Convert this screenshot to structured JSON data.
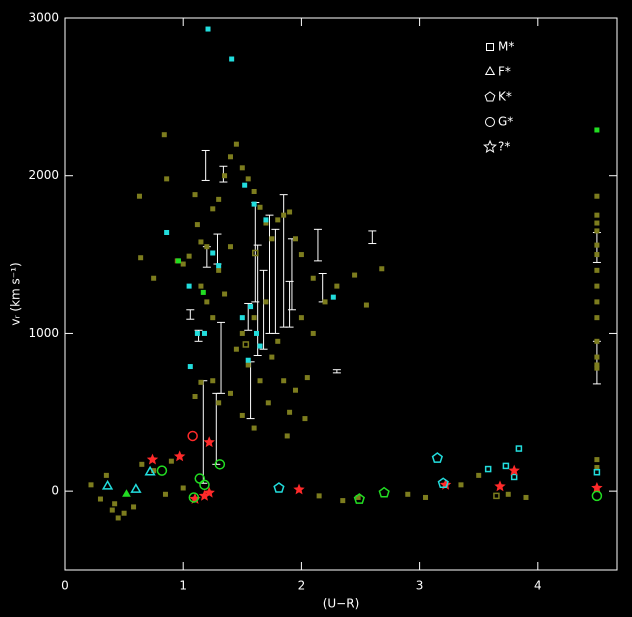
{
  "chart_data": {
    "type": "scatter",
    "xlabel": "(U−R)",
    "ylabel": "vᵣ (km s⁻¹)",
    "xlim": [
      0,
      4.67
    ],
    "ylim": [
      -500,
      3000
    ],
    "xticks": [
      0,
      1,
      2,
      3,
      4
    ],
    "yticks": [
      0,
      1000,
      2000,
      3000
    ],
    "legend_position": "upper right",
    "legend": [
      {
        "label": "M*",
        "marker": "square"
      },
      {
        "label": "F*",
        "marker": "triangle"
      },
      {
        "label": "K*",
        "marker": "pentagon"
      },
      {
        "label": "G*",
        "marker": "circle"
      },
      {
        "label": "?*",
        "marker": "star"
      }
    ],
    "series": [
      {
        "marker": "square",
        "color": "#7d7d1e",
        "filled": true,
        "x": [
          0.63,
          0.84,
          0.86,
          0.64,
          0.75,
          0.95,
          1.0,
          1.05,
          1.1,
          1.12,
          1.15,
          1.2,
          1.25,
          1.3,
          1.35,
          1.4,
          1.45,
          1.5,
          1.55,
          1.6,
          1.65,
          1.7,
          1.75,
          1.8,
          1.85,
          1.9,
          1.95,
          2.0,
          2.1,
          2.2,
          2.3,
          2.45,
          2.55,
          2.68,
          1.15,
          1.2,
          1.25,
          1.3,
          1.35,
          1.4,
          1.45,
          1.5,
          1.55,
          1.6,
          1.65,
          1.7,
          1.75,
          1.8,
          1.85,
          1.9,
          1.95,
          2.0,
          2.05,
          2.1,
          1.25,
          1.3,
          1.4,
          1.5,
          1.6,
          1.72,
          1.88,
          2.03,
          1.1,
          1.15,
          0.22,
          0.3,
          0.35,
          0.4,
          0.45,
          0.5,
          0.42,
          0.58,
          0.65,
          0.75,
          0.85,
          0.9,
          1.0,
          2.15,
          2.35,
          2.48,
          2.9,
          3.05,
          3.35,
          3.5,
          3.75,
          3.9,
          4.5,
          4.5,
          4.5,
          4.5,
          4.5,
          4.5,
          4.5,
          4.5,
          4.5,
          4.5,
          4.5,
          4.5,
          4.5,
          4.5,
          4.5,
          4.5
        ],
        "y": [
          1870,
          2260,
          1980,
          1480,
          1350,
          1460,
          1440,
          1490,
          1880,
          1690,
          1580,
          1550,
          1790,
          1850,
          2000,
          2120,
          2200,
          2050,
          1980,
          1900,
          1800,
          1700,
          1600,
          1720,
          1750,
          1770,
          1600,
          1500,
          1350,
          1200,
          1300,
          1370,
          1180,
          1410,
          1300,
          1200,
          1100,
          1400,
          1250,
          1550,
          900,
          1000,
          800,
          1100,
          700,
          1200,
          850,
          950,
          700,
          500,
          640,
          1100,
          720,
          1000,
          700,
          560,
          620,
          480,
          400,
          560,
          350,
          460,
          600,
          690,
          40,
          -50,
          100,
          -120,
          -170,
          -140,
          -80,
          -100,
          170,
          130,
          -20,
          190,
          20,
          -30,
          -60,
          -40,
          -20,
          -40,
          40,
          100,
          -20,
          -40,
          1870,
          1750,
          1700,
          1650,
          1560,
          1500,
          1400,
          1300,
          1200,
          1100,
          950,
          850,
          800,
          780,
          200,
          150
        ]
      },
      {
        "marker": "square",
        "color": "#7d7d1e",
        "filled": false,
        "x": [
          1.53,
          1.61,
          3.65
        ],
        "y": [
          930,
          1510,
          -30
        ]
      },
      {
        "marker": "square",
        "color": "#22dddd",
        "filled": true,
        "x": [
          1.21,
          1.41,
          0.86,
          1.06,
          1.12,
          1.52,
          1.57,
          1.62,
          2.27,
          1.05,
          1.6,
          1.7,
          1.65,
          1.5,
          1.55,
          1.25,
          1.3,
          1.18
        ],
        "y": [
          2930,
          2740,
          1640,
          790,
          1000,
          1940,
          1170,
          1000,
          1230,
          1300,
          1820,
          1720,
          920,
          1100,
          830,
          1510,
          1430,
          1000
        ]
      },
      {
        "marker": "square",
        "color": "#22dddd",
        "filled": false,
        "x": [
          3.58,
          3.73,
          3.84,
          3.8,
          4.5
        ],
        "y": [
          140,
          160,
          270,
          90,
          120
        ]
      },
      {
        "marker": "square",
        "color": "#22dd22",
        "filled": true,
        "x": [
          4.5,
          0.96,
          1.17
        ],
        "y": [
          2290,
          1460,
          1260
        ]
      },
      {
        "marker": "star",
        "color": "#ff2a2a",
        "filled": true,
        "x": [
          0.74,
          0.97,
          1.1,
          1.18,
          1.22,
          1.22,
          1.98,
          3.22,
          3.68,
          3.8,
          4.5
        ],
        "y": [
          200,
          220,
          -50,
          -30,
          -10,
          310,
          10,
          40,
          30,
          130,
          20
        ]
      },
      {
        "marker": "circle",
        "color": "#ff2a2a",
        "filled": false,
        "x": [
          1.08
        ],
        "y": [
          350
        ]
      },
      {
        "marker": "circle",
        "color": "#22dd22",
        "filled": false,
        "x": [
          0.82,
          1.09,
          1.14,
          1.18,
          1.31,
          4.5
        ],
        "y": [
          130,
          -40,
          80,
          40,
          170,
          -30
        ]
      },
      {
        "marker": "pentagon",
        "color": "#22dddd",
        "filled": false,
        "x": [
          1.81,
          3.15,
          3.2
        ],
        "y": [
          20,
          210,
          50
        ]
      },
      {
        "marker": "pentagon",
        "color": "#22dd22",
        "filled": false,
        "x": [
          2.49,
          2.7
        ],
        "y": [
          -50,
          -10
        ]
      },
      {
        "marker": "triangle",
        "color": "#22dddd",
        "filled": false,
        "x": [
          0.36,
          0.6,
          0.72
        ],
        "y": [
          30,
          10,
          120
        ]
      },
      {
        "marker": "triangle",
        "color": "#22dd22",
        "filled": true,
        "x": [
          0.52
        ],
        "y": [
          -20
        ]
      }
    ],
    "error_bars": {
      "color": "#ffffff",
      "x": [
        1.19,
        1.34,
        1.06,
        1.13,
        1.2,
        1.29,
        1.32,
        1.17,
        1.28,
        1.57,
        1.63,
        1.68,
        1.73,
        1.78,
        1.85,
        1.9,
        1.92,
        2.14,
        2.18,
        2.6,
        2.3,
        4.5,
        4.5,
        1.55,
        1.61
      ],
      "low": [
        1970,
        1960,
        1090,
        950,
        1420,
        1440,
        620,
        50,
        170,
        460,
        860,
        900,
        1000,
        1000,
        1040,
        1040,
        1150,
        1460,
        1200,
        1570,
        750,
        680,
        1450,
        1020,
        1200
      ],
      "high": [
        2160,
        2060,
        1150,
        1020,
        1550,
        1630,
        1070,
        700,
        620,
        820,
        1560,
        1400,
        1750,
        1660,
        1880,
        1330,
        1600,
        1660,
        1380,
        1650,
        770,
        950,
        1640,
        1190,
        1830
      ]
    }
  }
}
